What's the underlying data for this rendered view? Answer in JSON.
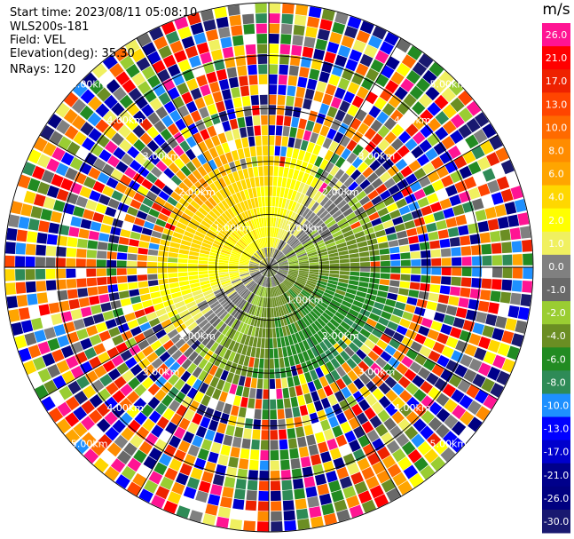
{
  "info": {
    "start_time": "Start time: 2023/08/11 05:08:10",
    "instrument": "WLS200s-181",
    "field": "Field: VEL",
    "elevation": "Elevation(deg): 35.30",
    "nrays": "NRays: 120"
  },
  "chart_data": {
    "type": "heatmap",
    "projection": "polar (PPI)",
    "field": "VEL",
    "unit": "m/s",
    "n_rays": 120,
    "elevation_deg": 35.3,
    "range_rings_km": [
      1.0,
      2.0,
      3.0,
      4.0,
      5.0
    ],
    "ring_labels": [
      {
        "text": "1.00km",
        "ring_km": 1.0,
        "angle_deg": 315
      },
      {
        "text": "1.00km",
        "ring_km": 1.0,
        "angle_deg": 135
      },
      {
        "text": "1.00km",
        "ring_km": 1.0,
        "angle_deg": 45
      },
      {
        "text": "2.00km",
        "ring_km": 2.0,
        "angle_deg": 315
      },
      {
        "text": "2.00km",
        "ring_km": 2.0,
        "angle_deg": 45
      },
      {
        "text": "2.00km",
        "ring_km": 2.0,
        "angle_deg": 135
      },
      {
        "text": "2.00km",
        "ring_km": 2.0,
        "angle_deg": 225
      },
      {
        "text": "3.00km",
        "ring_km": 3.0,
        "angle_deg": 315
      },
      {
        "text": "3.00km",
        "ring_km": 3.0,
        "angle_deg": 45
      },
      {
        "text": "3.00km",
        "ring_km": 3.0,
        "angle_deg": 135
      },
      {
        "text": "3.00km",
        "ring_km": 3.0,
        "angle_deg": 225
      },
      {
        "text": "4.00km",
        "ring_km": 4.0,
        "angle_deg": 315
      },
      {
        "text": "4.00km",
        "ring_km": 4.0,
        "angle_deg": 45
      },
      {
        "text": "4.00km",
        "ring_km": 4.0,
        "angle_deg": 135
      },
      {
        "text": "4.00km",
        "ring_km": 4.0,
        "angle_deg": 225
      },
      {
        "text": "5.00km",
        "ring_km": 5.0,
        "angle_deg": 315
      },
      {
        "text": "5.00km",
        "ring_km": 5.0,
        "angle_deg": 45
      },
      {
        "text": "5.00km",
        "ring_km": 5.0,
        "angle_deg": 135
      },
      {
        "text": "5.00km",
        "ring_km": 5.0,
        "angle_deg": 225
      }
    ],
    "azimuth_lines_deg": [
      0,
      30,
      60,
      90,
      120,
      150,
      180,
      210,
      240,
      270,
      300,
      330
    ],
    "colorbar": {
      "unit": "m/s",
      "levels": [
        {
          "label": "26.0",
          "value": 26.0,
          "color": "#ff1493"
        },
        {
          "label": "21.0",
          "value": 21.0,
          "color": "#ff0000"
        },
        {
          "label": "17.0",
          "value": 17.0,
          "color": "#ee2200"
        },
        {
          "label": "13.0",
          "value": 13.0,
          "color": "#ff4500"
        },
        {
          "label": "10.0",
          "value": 10.0,
          "color": "#ff6a00"
        },
        {
          "label": "8.0",
          "value": 8.0,
          "color": "#ff8c00"
        },
        {
          "label": "6.0",
          "value": 6.0,
          "color": "#ffa500"
        },
        {
          "label": "4.0",
          "value": 4.0,
          "color": "#ffd700"
        },
        {
          "label": "2.0",
          "value": 2.0,
          "color": "#ffff00"
        },
        {
          "label": "1.0",
          "value": 1.0,
          "color": "#f0f060"
        },
        {
          "label": "0.0",
          "value": 0.0,
          "color": "#808080"
        },
        {
          "label": "-1.0",
          "value": -1.0,
          "color": "#696969"
        },
        {
          "label": "-2.0",
          "value": -2.0,
          "color": "#9acd32"
        },
        {
          "label": "-4.0",
          "value": -4.0,
          "color": "#6b8e23"
        },
        {
          "label": "-6.0",
          "value": -6.0,
          "color": "#228b22"
        },
        {
          "label": "-8.0",
          "value": -8.0,
          "color": "#2e8b57"
        },
        {
          "label": "-10.0",
          "value": -10.0,
          "color": "#1e90ff"
        },
        {
          "label": "-13.0",
          "value": -13.0,
          "color": "#0000ff"
        },
        {
          "label": "-17.0",
          "value": -17.0,
          "color": "#0000cd"
        },
        {
          "label": "-21.0",
          "value": -21.0,
          "color": "#00008b"
        },
        {
          "label": "-26.0",
          "value": -26.0,
          "color": "#000080"
        },
        {
          "label": "-30.0",
          "value": -30.0,
          "color": "#191970"
        }
      ]
    },
    "clean_region": {
      "description_values": "near-radar velocities are coherent: positive (yellow/orange) to the north-west, negative (green) to the south-east; outer gates are noisy",
      "max_clean_range_km": 2.4
    }
  }
}
